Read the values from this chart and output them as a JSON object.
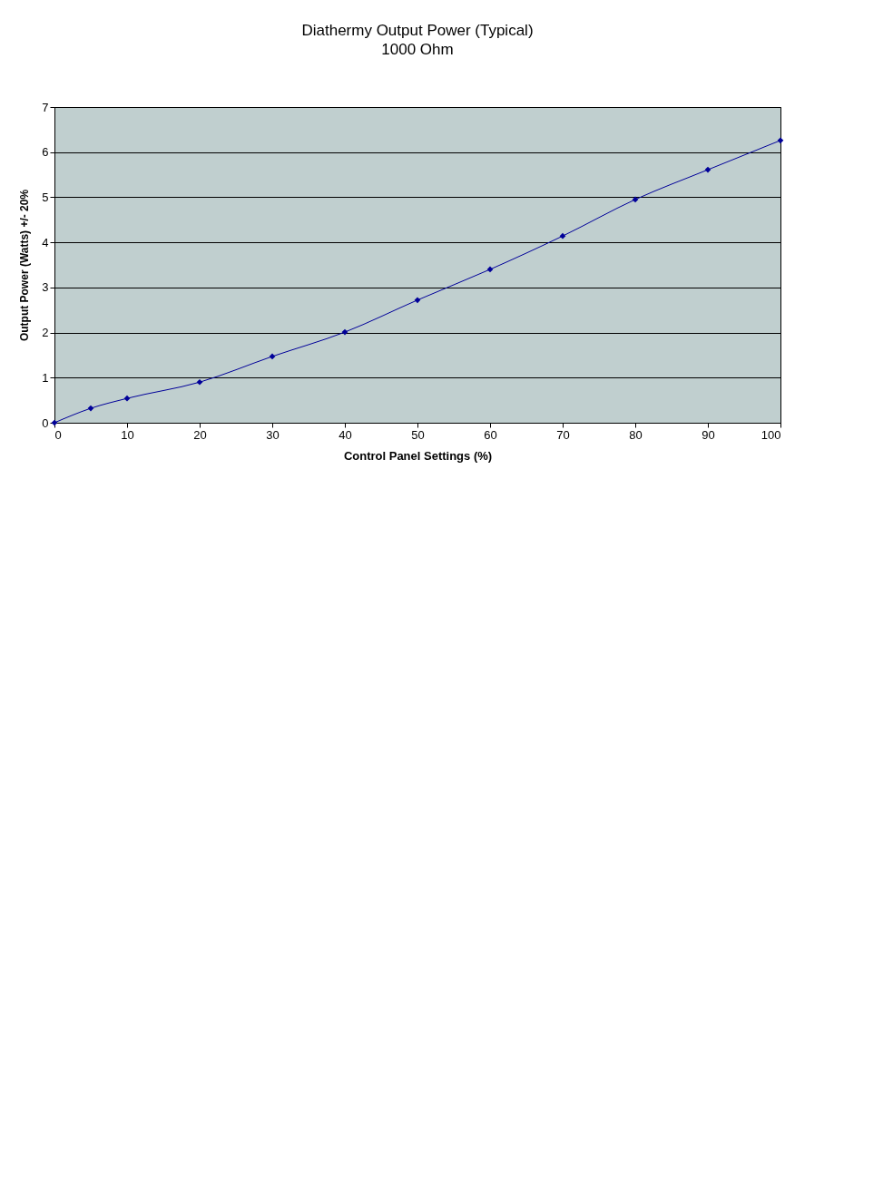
{
  "chart_data": {
    "type": "line",
    "title": "Diathermy Output Power (Typical)",
    "subtitle": "1000 Ohm",
    "xlabel": "Control Panel Settings (%)",
    "ylabel": "Output Power (Watts)  +/- 20%",
    "x": [
      0,
      5,
      10,
      20,
      30,
      40,
      50,
      60,
      70,
      80,
      90,
      100
    ],
    "series": [
      {
        "color": "#000099",
        "values": [
          0,
          0.32,
          0.54,
          0.9,
          1.47,
          2.01,
          2.72,
          3.4,
          4.14,
          4.95,
          5.61,
          6.26
        ]
      }
    ],
    "xlim": [
      0,
      100
    ],
    "xticks": [
      0,
      10,
      20,
      30,
      40,
      50,
      60,
      70,
      80,
      90,
      100
    ],
    "ylim": [
      0,
      7
    ],
    "yticks": [
      0,
      1,
      2,
      3,
      4,
      5,
      6,
      7
    ],
    "grid": "y",
    "marker": "diamond",
    "line_style": "solid"
  }
}
